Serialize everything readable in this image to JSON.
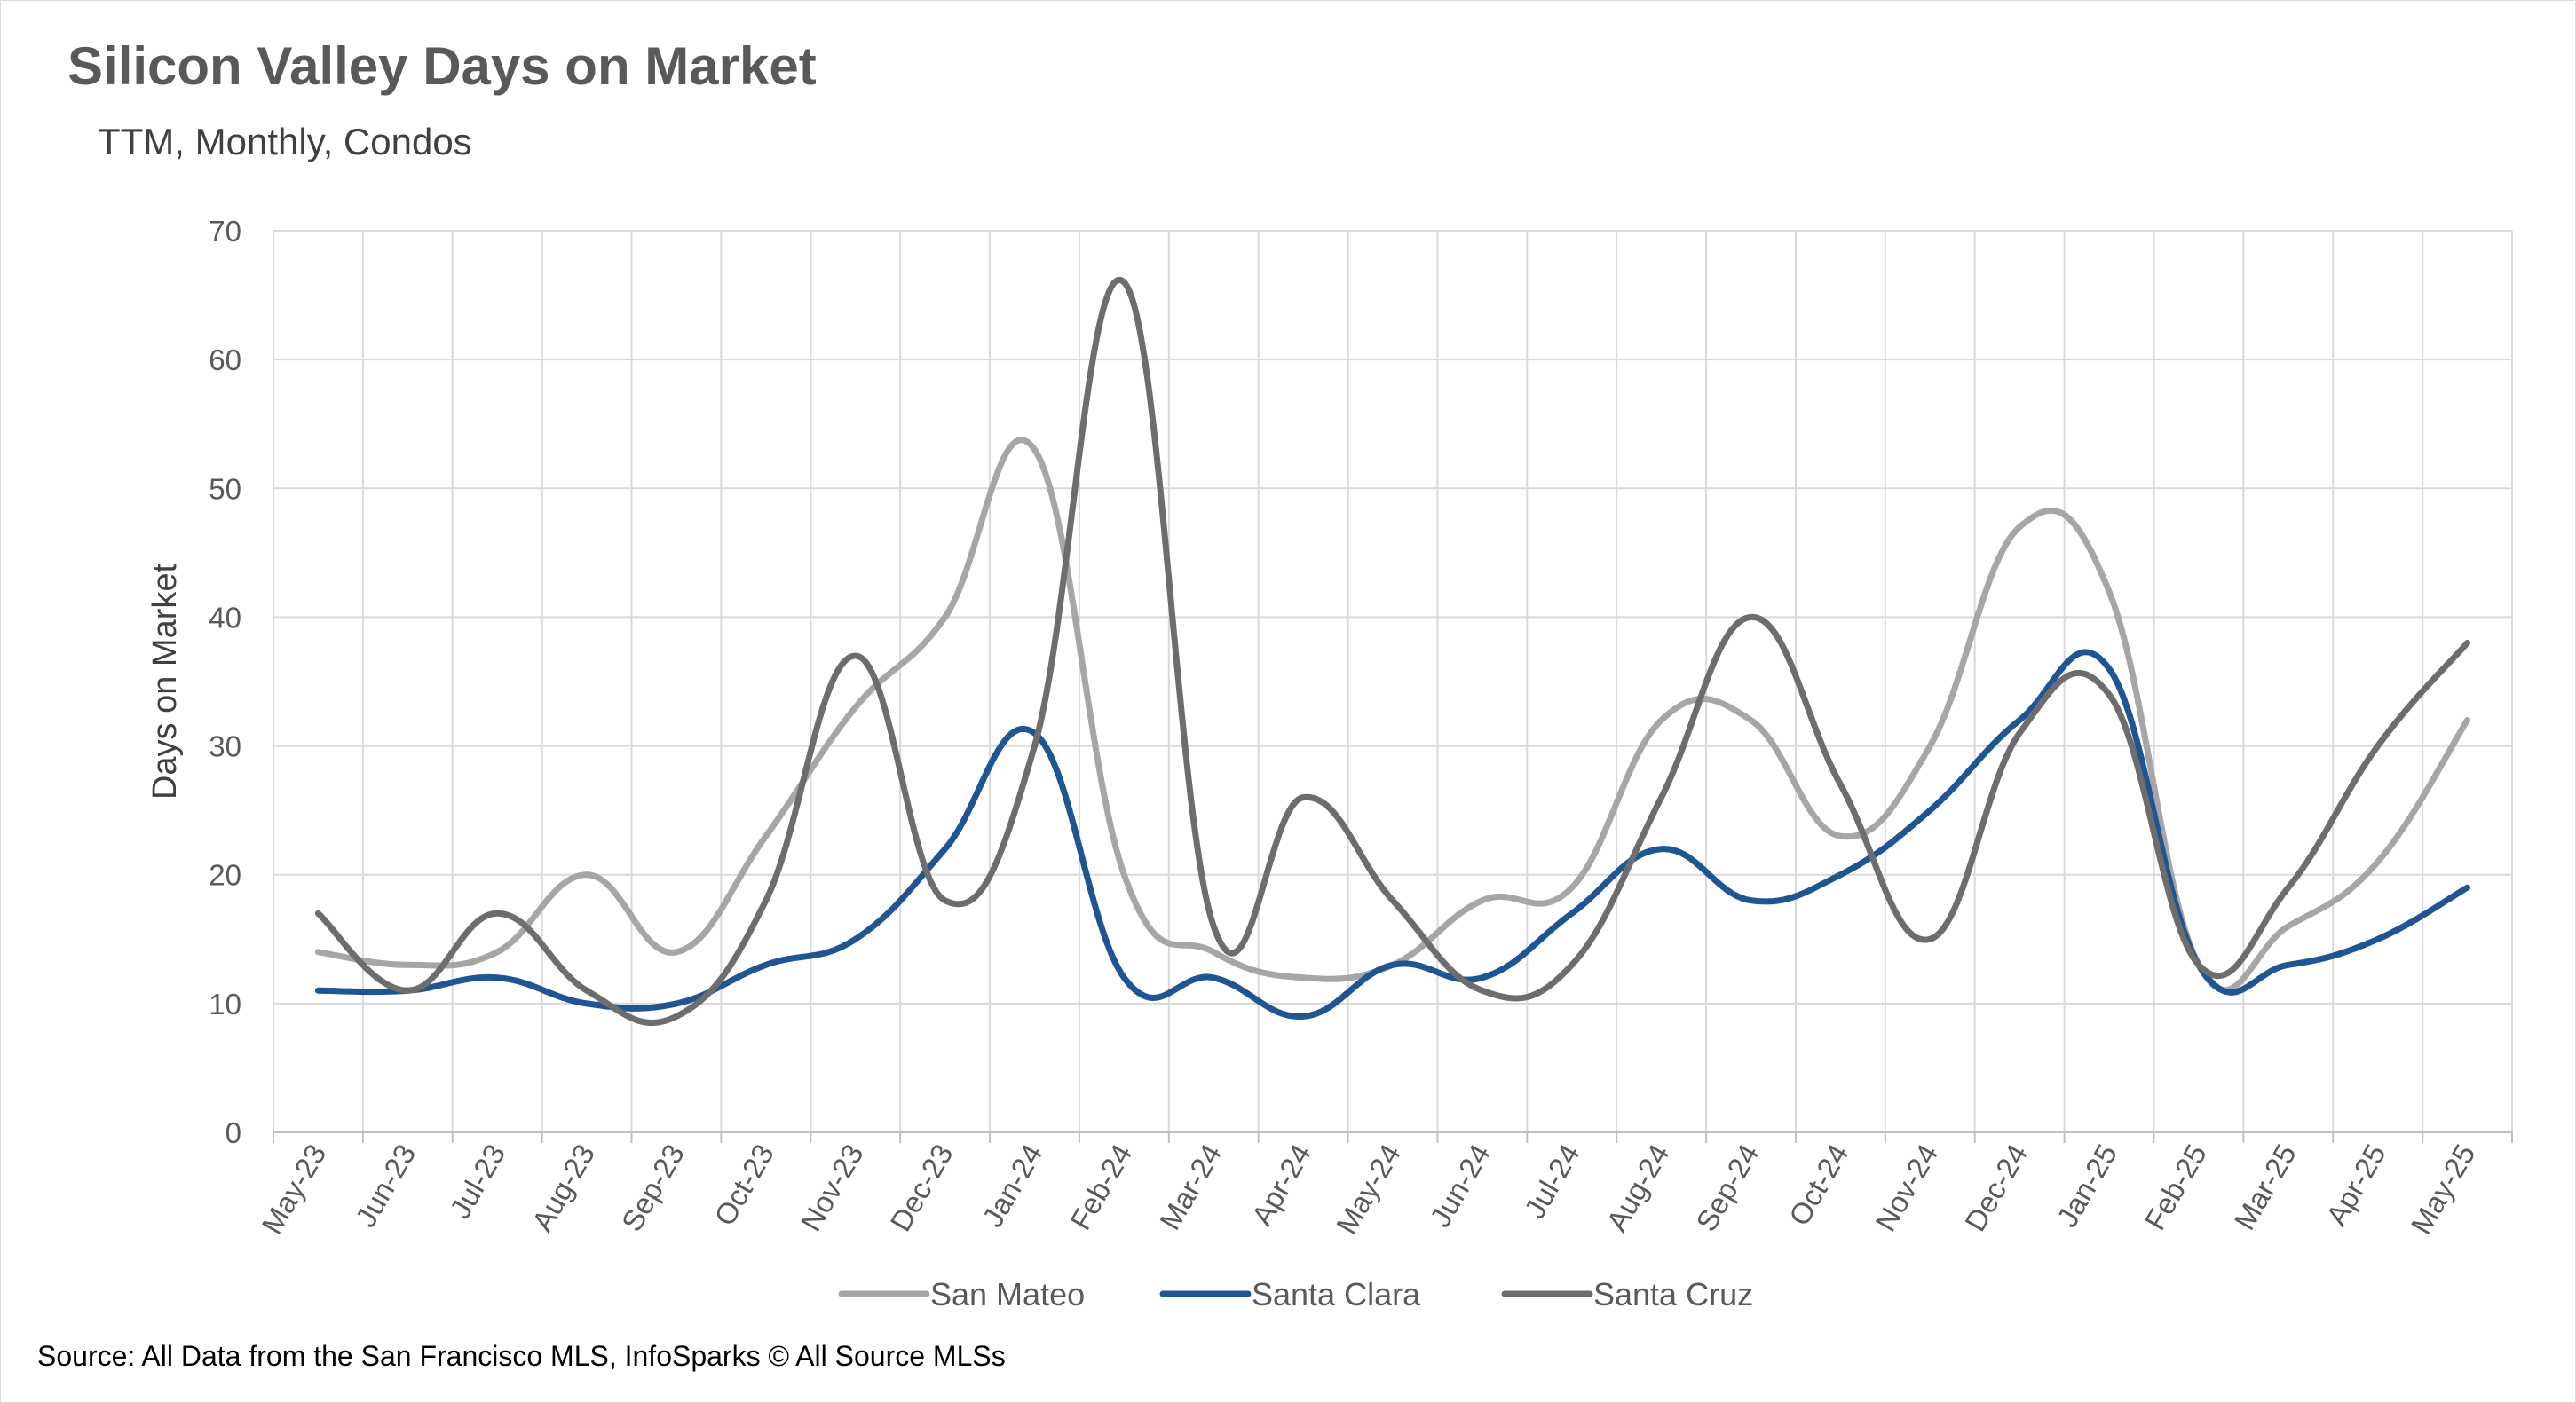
{
  "title": "Silicon Valley Days on Market",
  "subtitle": "TTM, Monthly, Condos",
  "source": "Source: All Data from the San Francisco MLS, InfoSparks © All Source MLSs",
  "chart_data": {
    "type": "line",
    "title": "Silicon Valley Days on Market",
    "subtitle": "TTM, Monthly, Condos",
    "xlabel": "",
    "ylabel": "Days on Market",
    "ylim": [
      0,
      70
    ],
    "yticks": [
      "0",
      "10",
      "20",
      "30",
      "40",
      "50",
      "60",
      "70"
    ],
    "grid": true,
    "smooth": true,
    "legend_position": "bottom",
    "categories": [
      "May-23",
      "Jun-23",
      "Jul-23",
      "Aug-23",
      "Sep-23",
      "Oct-23",
      "Nov-23",
      "Dec-23",
      "Jan-24",
      "Feb-24",
      "Mar-24",
      "Apr-24",
      "May-24",
      "Jun-24",
      "Jul-24",
      "Aug-24",
      "Sep-24",
      "Oct-24",
      "Nov-24",
      "Dec-24",
      "Jan-25",
      "Feb-25",
      "Mar-25",
      "Apr-25",
      "May-25"
    ],
    "series": [
      {
        "name": "San Mateo",
        "color": "#a6a6a6",
        "values": [
          14,
          13,
          14,
          20,
          14,
          23,
          33,
          40,
          53,
          20,
          14,
          12,
          13,
          18,
          19,
          32,
          32,
          23,
          30,
          47,
          42,
          13,
          16,
          21,
          32
        ]
      },
      {
        "name": "Santa Clara",
        "color": "#1f5592",
        "values": [
          11,
          11,
          12,
          10,
          10,
          13,
          15,
          22,
          31,
          12,
          12,
          9,
          13,
          12,
          17,
          22,
          18,
          20,
          25,
          32,
          36,
          13,
          13,
          15,
          19
        ]
      },
      {
        "name": "Santa Cruz",
        "color": "#6d6d6d",
        "values": [
          17,
          11,
          17,
          11,
          9,
          18,
          37,
          18,
          30,
          66,
          16,
          26,
          18,
          11,
          13,
          26,
          40,
          27,
          15,
          31,
          34,
          13,
          19,
          30,
          38
        ]
      }
    ]
  }
}
